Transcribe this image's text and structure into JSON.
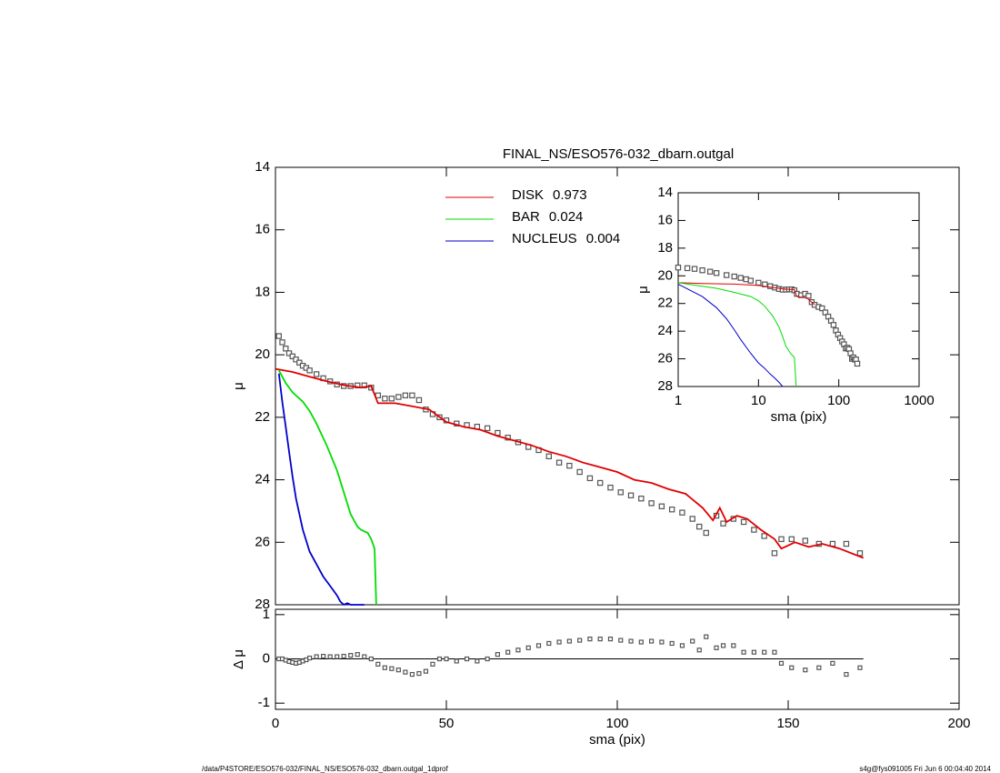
{
  "chart_data": [
    {
      "type": "scatter",
      "title": "FINAL_NS/ESO576-032_dbarn.outgal",
      "ylabel": "μ",
      "xlim": [
        0,
        200
      ],
      "xticks": [
        0,
        50,
        100,
        150,
        200
      ],
      "ylim": [
        28,
        14
      ],
      "yticks": [
        14,
        16,
        18,
        20,
        22,
        24,
        26,
        28
      ],
      "series": [
        {
          "mode": "markers",
          "color": "#555555",
          "x": [
            1,
            2,
            3,
            4,
            5,
            6,
            7,
            8,
            9,
            10,
            12,
            14,
            16,
            18,
            20,
            22,
            24,
            26,
            28,
            30,
            32,
            34,
            36,
            38,
            40,
            42,
            44,
            46,
            48,
            50,
            53,
            56,
            59,
            62,
            65,
            68,
            71,
            74,
            77,
            80,
            83,
            86,
            89,
            92,
            95,
            98,
            101,
            104,
            107,
            110,
            113,
            116,
            119,
            122,
            124,
            126,
            129,
            131,
            134,
            137,
            140,
            143,
            146,
            148,
            151,
            155,
            159,
            163,
            167,
            171
          ],
          "values": [
            19.4,
            19.6,
            19.8,
            19.95,
            20.05,
            20.15,
            20.25,
            20.35,
            20.42,
            20.5,
            20.62,
            20.75,
            20.85,
            20.95,
            21.0,
            21.0,
            20.98,
            20.98,
            21.05,
            21.3,
            21.4,
            21.4,
            21.35,
            21.3,
            21.3,
            21.45,
            21.75,
            21.9,
            22.0,
            22.1,
            22.2,
            22.25,
            22.3,
            22.35,
            22.5,
            22.65,
            22.8,
            22.95,
            23.05,
            23.25,
            23.45,
            23.55,
            23.75,
            23.95,
            24.1,
            24.25,
            24.4,
            24.5,
            24.6,
            24.75,
            24.85,
            24.95,
            25.05,
            25.25,
            25.5,
            25.7,
            25.15,
            25.4,
            25.25,
            25.35,
            25.6,
            25.8,
            26.35,
            25.9,
            25.9,
            25.95,
            26.05,
            26.05,
            26.05,
            26.35
          ]
        },
        {
          "mode": "lines",
          "name": "DISK",
          "fraction": 0.973,
          "color": "#e00000",
          "x": [
            0,
            5,
            10,
            15,
            20,
            25,
            28,
            30,
            35,
            40,
            45,
            50,
            55,
            60,
            65,
            70,
            75,
            80,
            85,
            90,
            95,
            100,
            105,
            110,
            115,
            120,
            125,
            128,
            130,
            132,
            135,
            138,
            142,
            146,
            148,
            152,
            156,
            160,
            165,
            172
          ],
          "values": [
            20.45,
            20.55,
            20.7,
            20.85,
            20.97,
            21.05,
            21.0,
            21.55,
            21.55,
            21.65,
            21.75,
            22.15,
            22.3,
            22.4,
            22.6,
            22.75,
            22.9,
            23.1,
            23.25,
            23.45,
            23.6,
            23.75,
            24.0,
            24.1,
            24.3,
            24.45,
            24.9,
            25.3,
            24.9,
            25.35,
            25.15,
            25.25,
            25.6,
            25.9,
            26.2,
            26.0,
            26.15,
            26.05,
            26.2,
            26.5
          ]
        },
        {
          "mode": "lines",
          "name": "BAR",
          "fraction": 0.024,
          "color": "#00dd00",
          "x": [
            1,
            3,
            5,
            8,
            10,
            12,
            15,
            18,
            20,
            22,
            24,
            25,
            26,
            27,
            28,
            29,
            29.5
          ],
          "values": [
            20.5,
            20.9,
            21.2,
            21.5,
            21.8,
            22.2,
            22.9,
            23.7,
            24.4,
            25.1,
            25.5,
            25.6,
            25.65,
            25.7,
            25.9,
            26.2,
            28.0
          ]
        },
        {
          "mode": "lines",
          "name": "NUCLEUS",
          "fraction": 0.004,
          "color": "#0000cc",
          "x": [
            1,
            2,
            3,
            4,
            5,
            6,
            8,
            10,
            12,
            14,
            16,
            18,
            19,
            20,
            21,
            22,
            23,
            24,
            26
          ],
          "values": [
            20.6,
            21.5,
            22.3,
            23.1,
            23.9,
            24.6,
            25.6,
            26.3,
            26.7,
            27.1,
            27.4,
            27.7,
            27.9,
            28.0,
            27.95,
            28.0,
            28.0,
            28.0,
            28.0
          ]
        }
      ]
    },
    {
      "type": "scatter",
      "xlabel": "sma (pix)",
      "ylabel": "Δ μ",
      "xlim": [
        0,
        200
      ],
      "xticks": [
        0,
        50,
        100,
        150,
        200
      ],
      "ylim": [
        -1.14,
        1.12
      ],
      "yticks": [
        -1,
        0,
        1
      ],
      "series": [
        {
          "mode": "markers",
          "color": "#555555",
          "x": [
            1,
            2,
            3,
            4,
            5,
            6,
            7,
            8,
            9,
            10,
            12,
            14,
            16,
            18,
            20,
            22,
            24,
            26,
            28,
            30,
            32,
            34,
            36,
            38,
            40,
            42,
            44,
            46,
            48,
            50,
            53,
            56,
            59,
            62,
            65,
            68,
            71,
            74,
            77,
            80,
            83,
            86,
            89,
            92,
            95,
            98,
            101,
            104,
            107,
            110,
            113,
            116,
            119,
            122,
            124,
            126,
            129,
            131,
            134,
            137,
            140,
            143,
            146,
            148,
            151,
            155,
            159,
            163,
            167,
            171
          ],
          "values": [
            0.0,
            0.0,
            -0.03,
            -0.06,
            -0.08,
            -0.1,
            -0.08,
            -0.05,
            -0.02,
            0.02,
            0.05,
            0.06,
            0.05,
            0.05,
            0.06,
            0.08,
            0.1,
            0.05,
            0.0,
            -0.12,
            -0.2,
            -0.22,
            -0.25,
            -0.3,
            -0.35,
            -0.33,
            -0.28,
            -0.12,
            0.0,
            0.0,
            -0.05,
            0.0,
            -0.05,
            0.0,
            0.1,
            0.15,
            0.2,
            0.25,
            0.3,
            0.35,
            0.38,
            0.4,
            0.42,
            0.45,
            0.45,
            0.45,
            0.42,
            0.4,
            0.38,
            0.4,
            0.38,
            0.35,
            0.3,
            0.4,
            0.2,
            0.5,
            0.25,
            0.3,
            0.3,
            0.15,
            0.15,
            0.15,
            0.15,
            -0.1,
            -0.2,
            -0.25,
            -0.2,
            -0.1,
            -0.35,
            -0.2
          ]
        }
      ]
    },
    {
      "type": "scatter",
      "xlabel": "sma (pix)",
      "ylabel": "μ",
      "log_x": true,
      "xlim": [
        1,
        1000
      ],
      "xticks": [
        1,
        10,
        100,
        1000
      ],
      "ylim": [
        28,
        14
      ],
      "yticks": [
        14,
        16,
        18,
        20,
        22,
        24,
        26,
        28
      ],
      "series": [
        {
          "mode": "markers",
          "color": "#555555",
          "x": [
            1,
            1.3,
            1.6,
            2,
            2.5,
            3,
            4,
            5,
            6,
            7,
            8,
            10,
            12,
            14,
            16,
            18,
            20,
            22,
            24,
            26,
            28,
            30,
            34,
            38,
            42,
            46,
            50,
            56,
            62,
            68,
            74,
            80,
            86,
            92,
            98,
            104,
            110,
            116,
            122,
            128,
            134,
            140,
            146,
            152,
            158,
            164,
            170
          ],
          "values": [
            19.4,
            19.45,
            19.5,
            19.6,
            19.7,
            19.8,
            19.95,
            20.05,
            20.15,
            20.25,
            20.35,
            20.5,
            20.62,
            20.75,
            20.85,
            20.95,
            21.0,
            21.0,
            20.98,
            20.98,
            21.05,
            21.3,
            21.4,
            21.3,
            21.45,
            21.9,
            22.1,
            22.25,
            22.35,
            22.65,
            22.95,
            23.25,
            23.55,
            23.95,
            24.25,
            24.5,
            24.75,
            24.95,
            25.25,
            25.2,
            25.3,
            25.6,
            26.0,
            25.9,
            26.05,
            26.05,
            26.35
          ]
        },
        {
          "mode": "lines",
          "color": "#e00000",
          "x": [
            1,
            2,
            5,
            10,
            20,
            28,
            30,
            40,
            50
          ],
          "values": [
            20.5,
            20.55,
            20.6,
            20.7,
            20.95,
            21.0,
            21.5,
            21.6,
            22.1
          ]
        },
        {
          "mode": "lines",
          "color": "#00dd00",
          "x": [
            1,
            3,
            5,
            8,
            10,
            12,
            15,
            18,
            20,
            22,
            25,
            28,
            29.5
          ],
          "values": [
            20.5,
            20.9,
            21.2,
            21.5,
            21.8,
            22.2,
            22.9,
            23.7,
            24.4,
            25.1,
            25.6,
            25.9,
            28.0
          ]
        },
        {
          "mode": "lines",
          "color": "#0000cc",
          "x": [
            1,
            2,
            3,
            4,
            5,
            6,
            8,
            10,
            12,
            14,
            16,
            18,
            20
          ],
          "values": [
            20.6,
            21.5,
            22.3,
            23.1,
            23.9,
            24.6,
            25.6,
            26.3,
            26.7,
            27.1,
            27.4,
            27.7,
            28.0
          ]
        }
      ]
    }
  ],
  "footer": {
    "left": "/data/P4STORE/ESO576-032/FINAL_NS/ESO576-032_dbarn.outgal_1dprof",
    "right": "s4g@fys091005  Fri Jun  6 00:04:40 2014"
  }
}
